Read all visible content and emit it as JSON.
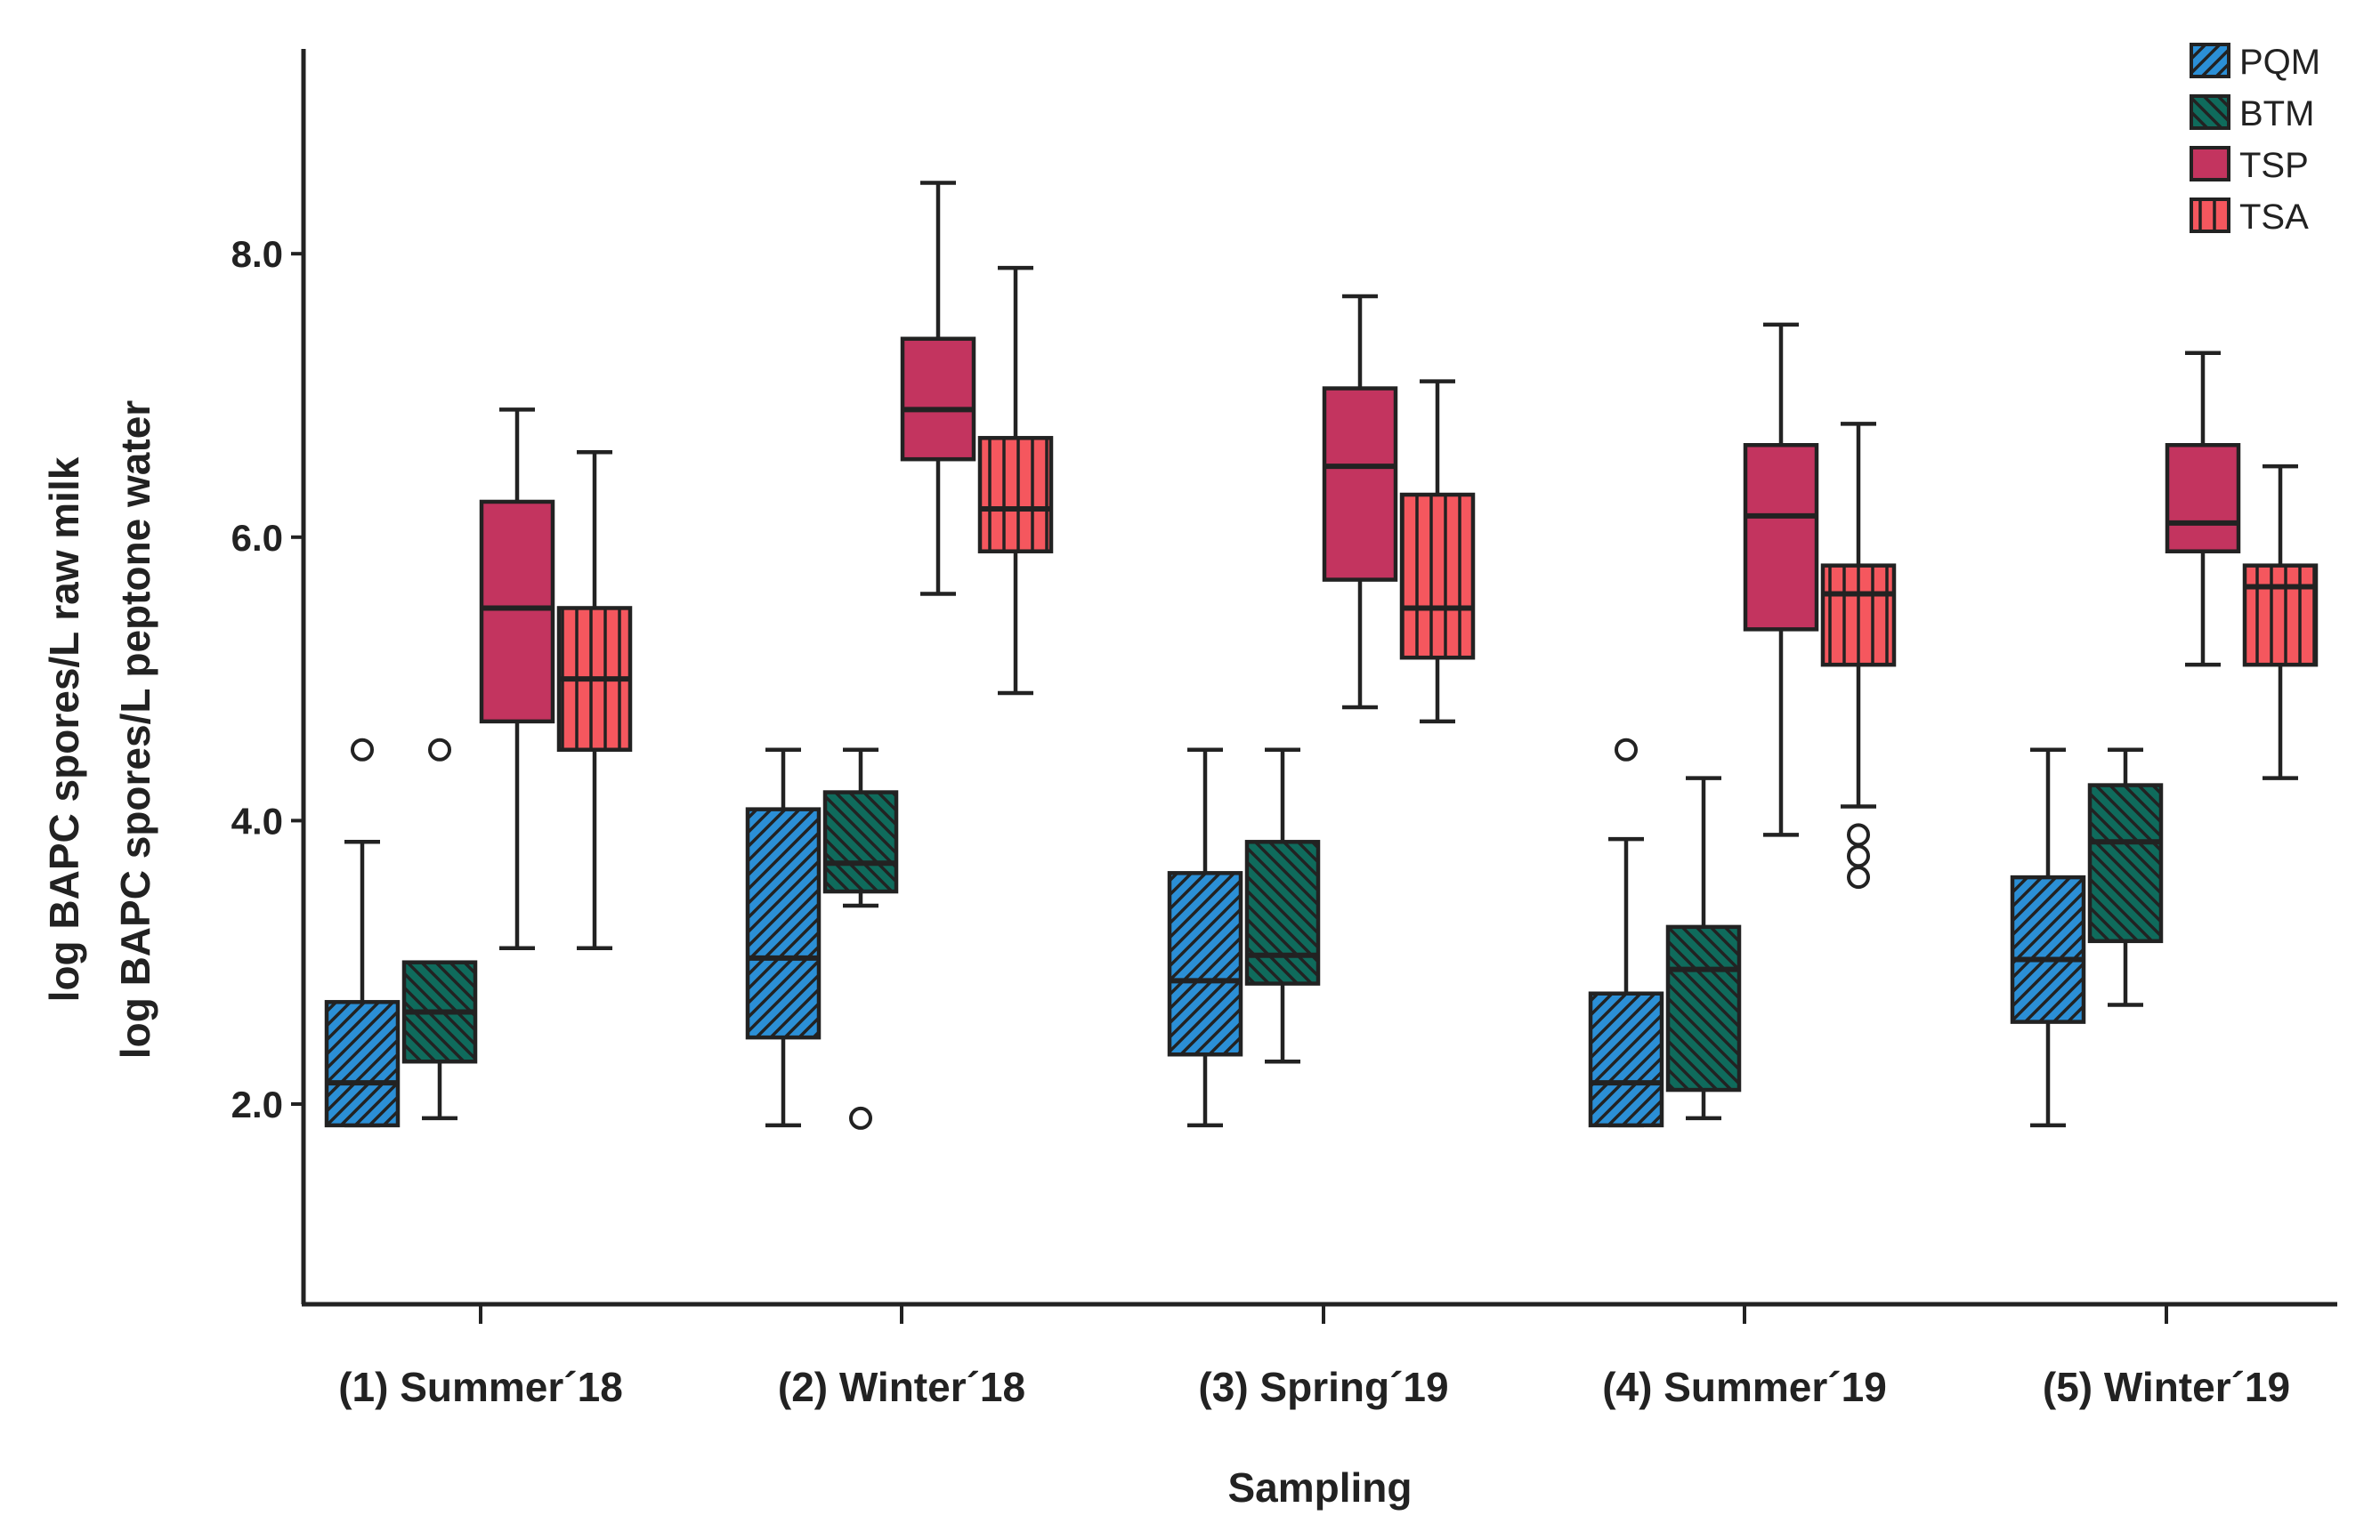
{
  "chart_data": {
    "type": "boxplot",
    "xlabel": "Sampling",
    "ylabel": [
      "log BAPC spores/L raw milk",
      "log BAPC spores/L peptone water"
    ],
    "ylim": [
      0.8,
      9.6
    ],
    "yticks": [
      2.0,
      4.0,
      6.0,
      8.0
    ],
    "ytick_labels": [
      "2.0",
      "4.0",
      "6.0",
      "8.0"
    ],
    "categories": [
      "(1) Summer´18",
      "(2) Winter´18",
      "(3) Spring´19",
      "(4) Summer´19",
      "(5) Winter´19"
    ],
    "legend": {
      "position": "top-right"
    },
    "series": [
      {
        "name": "PQM",
        "color": "#2b8fd6",
        "pattern": "diagonal",
        "boxes": [
          {
            "whisker_low": 1.85,
            "q1": 1.85,
            "median": 2.15,
            "q3": 2.72,
            "whisker_high": 3.85,
            "outliers": [
              4.5
            ]
          },
          {
            "whisker_low": 1.85,
            "q1": 2.47,
            "median": 3.03,
            "q3": 4.08,
            "whisker_high": 4.5,
            "outliers": []
          },
          {
            "whisker_low": 1.85,
            "q1": 2.35,
            "median": 2.87,
            "q3": 3.63,
            "whisker_high": 4.5,
            "outliers": []
          },
          {
            "whisker_low": 1.85,
            "q1": 1.85,
            "median": 2.15,
            "q3": 2.78,
            "whisker_high": 3.87,
            "outliers": [
              4.5
            ]
          },
          {
            "whisker_low": 1.85,
            "q1": 2.58,
            "median": 3.02,
            "q3": 3.6,
            "whisker_high": 4.5,
            "outliers": []
          }
        ]
      },
      {
        "name": "BTM",
        "color": "#0f6b5c",
        "pattern": "diagonal-reverse",
        "boxes": [
          {
            "whisker_low": 1.9,
            "q1": 2.3,
            "median": 2.65,
            "q3": 3.0,
            "whisker_high": 3.0,
            "outliers": [
              4.5
            ]
          },
          {
            "whisker_low": 3.4,
            "q1": 3.5,
            "median": 3.7,
            "q3": 4.2,
            "whisker_high": 4.5,
            "outliers": [
              1.9
            ]
          },
          {
            "whisker_low": 2.3,
            "q1": 2.85,
            "median": 3.05,
            "q3": 3.85,
            "whisker_high": 4.5,
            "outliers": []
          },
          {
            "whisker_low": 1.9,
            "q1": 2.1,
            "median": 2.95,
            "q3": 3.25,
            "whisker_high": 4.3,
            "outliers": []
          },
          {
            "whisker_low": 2.7,
            "q1": 3.15,
            "median": 3.85,
            "q3": 4.25,
            "whisker_high": 4.5,
            "outliers": []
          }
        ]
      },
      {
        "name": "TSP",
        "color": "#c3345f",
        "pattern": "solid",
        "boxes": [
          {
            "whisker_low": 3.1,
            "q1": 4.7,
            "median": 5.5,
            "q3": 6.25,
            "whisker_high": 6.9,
            "outliers": []
          },
          {
            "whisker_low": 5.6,
            "q1": 6.55,
            "median": 6.9,
            "q3": 7.4,
            "whisker_high": 8.5,
            "outliers": []
          },
          {
            "whisker_low": 4.8,
            "q1": 5.7,
            "median": 6.5,
            "q3": 7.05,
            "whisker_high": 7.7,
            "outliers": []
          },
          {
            "whisker_low": 3.9,
            "q1": 5.35,
            "median": 6.15,
            "q3": 6.65,
            "whisker_high": 7.5,
            "outliers": []
          },
          {
            "whisker_low": 5.1,
            "q1": 5.9,
            "median": 6.1,
            "q3": 6.65,
            "whisker_high": 7.3,
            "outliers": []
          }
        ]
      },
      {
        "name": "TSA",
        "color": "#f5575e",
        "pattern": "vertical",
        "boxes": [
          {
            "whisker_low": 3.1,
            "q1": 4.5,
            "median": 5.0,
            "q3": 5.5,
            "whisker_high": 6.6,
            "outliers": []
          },
          {
            "whisker_low": 4.9,
            "q1": 5.9,
            "median": 6.2,
            "q3": 6.7,
            "whisker_high": 7.9,
            "outliers": []
          },
          {
            "whisker_low": 4.7,
            "q1": 5.15,
            "median": 5.5,
            "q3": 6.3,
            "whisker_high": 7.1,
            "outliers": []
          },
          {
            "whisker_low": 4.1,
            "q1": 5.1,
            "median": 5.6,
            "q3": 5.8,
            "whisker_high": 6.8,
            "outliers": [
              3.9,
              3.75,
              3.6
            ]
          },
          {
            "whisker_low": 4.3,
            "q1": 5.1,
            "median": 5.65,
            "q3": 5.8,
            "whisker_high": 6.5,
            "outliers": []
          }
        ]
      }
    ]
  }
}
